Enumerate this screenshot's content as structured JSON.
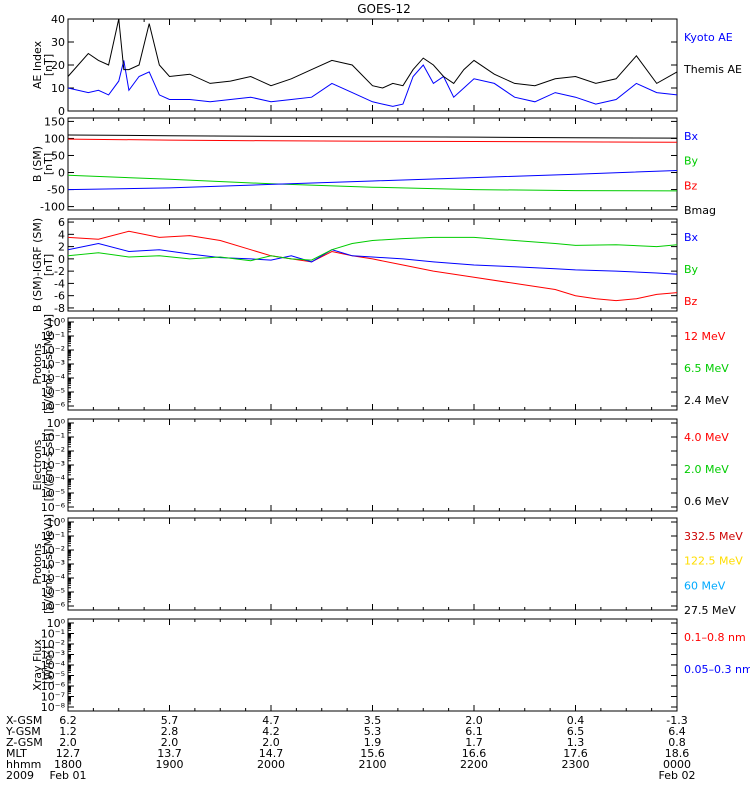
{
  "title": "GOES-12",
  "colors": {
    "black": "#000000",
    "blue": "#0000ff",
    "red": "#ff0000",
    "green": "#00cc00",
    "yellow": "#ffdd00",
    "cyan": "#00aaff"
  },
  "chart_data": [
    {
      "type": "line",
      "ylabel": [
        "AE Index",
        "[nT]"
      ],
      "ylim": [
        0,
        40
      ],
      "yticks": [
        "0",
        "10",
        "20",
        "30",
        "40"
      ],
      "legend": [
        {
          "label": "Kyoto AE",
          "color": "#0000ff"
        },
        {
          "label": "Themis AE",
          "color": "#000000"
        }
      ],
      "series": [
        {
          "name": "Kyoto AE",
          "color": "#0000ff",
          "x": [
            0,
            0.2,
            0.3,
            0.4,
            0.5,
            0.55,
            0.6,
            0.7,
            0.8,
            0.9,
            1.0,
            1.2,
            1.4,
            1.6,
            1.8,
            2.0,
            2.2,
            2.4,
            2.6,
            2.8,
            3.0,
            3.1,
            3.2,
            3.3,
            3.4,
            3.5,
            3.6,
            3.7,
            3.8,
            3.9,
            4.0,
            4.2,
            4.4,
            4.6,
            4.8,
            5.0,
            5.2,
            5.4,
            5.6,
            5.8,
            6.0
          ],
          "y": [
            10,
            8,
            9,
            7,
            13,
            22,
            9,
            15,
            17,
            7,
            5,
            5,
            4,
            5,
            6,
            4,
            5,
            6,
            12,
            8,
            4,
            3,
            2,
            3,
            15,
            20,
            12,
            15,
            6,
            10,
            14,
            12,
            6,
            4,
            8,
            6,
            3,
            5,
            12,
            8,
            7
          ]
        },
        {
          "name": "Themis AE",
          "color": "#000000",
          "x": [
            0,
            0.2,
            0.3,
            0.4,
            0.5,
            0.55,
            0.6,
            0.7,
            0.8,
            0.9,
            1.0,
            1.2,
            1.4,
            1.6,
            1.8,
            2.0,
            2.2,
            2.4,
            2.6,
            2.8,
            3.0,
            3.1,
            3.2,
            3.3,
            3.4,
            3.5,
            3.6,
            3.7,
            3.8,
            3.9,
            4.0,
            4.2,
            4.4,
            4.6,
            4.8,
            5.0,
            5.2,
            5.4,
            5.6,
            5.8,
            6.0
          ],
          "y": [
            15,
            25,
            22,
            20,
            40,
            18,
            18,
            20,
            38,
            20,
            15,
            16,
            12,
            13,
            15,
            11,
            14,
            18,
            22,
            20,
            11,
            10,
            12,
            11,
            18,
            23,
            20,
            15,
            12,
            18,
            22,
            16,
            12,
            11,
            14,
            15,
            12,
            14,
            24,
            12,
            17
          ]
        }
      ]
    },
    {
      "type": "line",
      "ylabel": [
        "B (SM)",
        "[nT]"
      ],
      "ylim": [
        -110,
        160
      ],
      "yticks": [
        "-100",
        "-50",
        "0",
        "50",
        "100",
        "150"
      ],
      "legend": [
        {
          "label": "Bx",
          "color": "#0000ff"
        },
        {
          "label": "By",
          "color": "#00cc00"
        },
        {
          "label": "Bz",
          "color": "#ff0000"
        },
        {
          "label": "Bmag",
          "color": "#000000"
        }
      ],
      "series": [
        {
          "name": "Bmag",
          "color": "#000000",
          "x": [
            0,
            1,
            2,
            3,
            4,
            5,
            6
          ],
          "y": [
            110,
            108,
            106,
            105,
            104,
            102,
            101
          ]
        },
        {
          "name": "Bz",
          "color": "#ff0000",
          "x": [
            0,
            1,
            2,
            3,
            4,
            5,
            6
          ],
          "y": [
            98,
            95,
            93,
            92,
            91,
            90,
            89
          ]
        },
        {
          "name": "By",
          "color": "#00cc00",
          "x": [
            0,
            1,
            2,
            3,
            4,
            5,
            6
          ],
          "y": [
            -8,
            -20,
            -33,
            -43,
            -50,
            -53,
            -54
          ]
        },
        {
          "name": "Bx",
          "color": "#0000ff",
          "x": [
            0,
            1,
            2,
            3,
            4,
            5,
            6
          ],
          "y": [
            -50,
            -45,
            -35,
            -25,
            -15,
            -5,
            6
          ]
        }
      ]
    },
    {
      "type": "line",
      "ylabel": [
        "B (SM)-IGRF (SM)",
        "[nT]"
      ],
      "ylim": [
        -8.5,
        6.5
      ],
      "yticks": [
        "-8",
        "-6",
        "-4",
        "-2",
        "0",
        "2",
        "4",
        "6"
      ],
      "legend": [
        {
          "label": "Bx",
          "color": "#0000ff"
        },
        {
          "label": "By",
          "color": "#00cc00"
        },
        {
          "label": "Bz",
          "color": "#ff0000"
        }
      ],
      "series": [
        {
          "name": "Bz",
          "color": "#ff0000",
          "x": [
            0,
            0.3,
            0.6,
            0.9,
            1.2,
            1.5,
            1.8,
            2.0,
            2.2,
            2.4,
            2.6,
            2.8,
            3.0,
            3.3,
            3.6,
            4.0,
            4.4,
            4.8,
            5.0,
            5.2,
            5.4,
            5.6,
            5.8,
            6.0
          ],
          "y": [
            3.5,
            3.2,
            4.5,
            3.5,
            3.8,
            3.0,
            1.5,
            0.5,
            0,
            -0.5,
            1.2,
            0.5,
            0,
            -1.0,
            -2.0,
            -3.0,
            -4.0,
            -5.0,
            -6.0,
            -6.5,
            -6.8,
            -6.5,
            -5.8,
            -5.5
          ]
        },
        {
          "name": "Bx",
          "color": "#0000ff",
          "x": [
            0,
            0.3,
            0.6,
            0.9,
            1.2,
            1.5,
            1.8,
            2.0,
            2.2,
            2.4,
            2.6,
            2.8,
            3.0,
            3.3,
            3.6,
            4.0,
            4.4,
            4.8,
            5.0,
            5.4,
            5.8,
            6.0
          ],
          "y": [
            1.5,
            2.5,
            1.2,
            1.5,
            0.8,
            0.2,
            0,
            -0.2,
            0.5,
            -0.5,
            1.5,
            0.5,
            0.3,
            0,
            -0.5,
            -1.0,
            -1.3,
            -1.6,
            -1.8,
            -2.0,
            -2.3,
            -2.5
          ]
        },
        {
          "name": "By",
          "color": "#00cc00",
          "x": [
            0,
            0.3,
            0.6,
            0.9,
            1.2,
            1.5,
            1.8,
            2.0,
            2.2,
            2.4,
            2.6,
            2.8,
            3.0,
            3.3,
            3.6,
            4.0,
            4.4,
            4.8,
            5.0,
            5.4,
            5.8,
            6.0
          ],
          "y": [
            0.5,
            1.0,
            0.3,
            0.5,
            0,
            0.3,
            -0.3,
            0.5,
            0,
            -0.2,
            1.5,
            2.5,
            3.0,
            3.3,
            3.5,
            3.5,
            3.0,
            2.5,
            2.2,
            2.3,
            2.0,
            2.3
          ]
        }
      ]
    },
    {
      "type": "line",
      "ylabel": [
        "Protons",
        "[p/(cm²-s-sr-MeV)]"
      ],
      "log": true,
      "yticks": [
        "10⁻⁶",
        "10⁻⁵",
        "10⁻⁴",
        "10⁻³",
        "10⁻²",
        "10⁻¹",
        "10⁰"
      ],
      "legend": [
        {
          "label": "12 MeV",
          "color": "#ff0000"
        },
        {
          "label": "6.5 MeV",
          "color": "#00cc00"
        },
        {
          "label": "2.4 MeV",
          "color": "#000000"
        }
      ],
      "series": []
    },
    {
      "type": "line",
      "ylabel": [
        "Electrons",
        "[e/(cm²-s-sr)]"
      ],
      "log": true,
      "yticks": [
        "10⁻⁶",
        "10⁻⁵",
        "10⁻⁴",
        "10⁻³",
        "10⁻²",
        "10⁻¹",
        "10⁰"
      ],
      "legend": [
        {
          "label": "4.0 MeV",
          "color": "#ff0000"
        },
        {
          "label": "2.0 MeV",
          "color": "#00cc00"
        },
        {
          "label": "0.6 MeV",
          "color": "#000000"
        }
      ],
      "series": []
    },
    {
      "type": "line",
      "ylabel": [
        "Protons",
        "[p/(cm²-s-sr-MeV)]"
      ],
      "log": true,
      "yticks": [
        "10⁻⁶",
        "10⁻⁵",
        "10⁻⁴",
        "10⁻³",
        "10⁻²",
        "10⁻¹",
        "10⁰"
      ],
      "legend": [
        {
          "label": "332.5 MeV",
          "color": "#cc0000"
        },
        {
          "label": "122.5 MeV",
          "color": "#ffdd00"
        },
        {
          "label": "60 MeV",
          "color": "#00aaff"
        },
        {
          "label": "27.5 MeV",
          "color": "#000000"
        }
      ],
      "series": []
    },
    {
      "type": "line",
      "ylabel": [
        "Xray  Flux",
        "[W/m²]"
      ],
      "log": true,
      "yticks": [
        "10⁻⁸",
        "10⁻⁷",
        "10⁻⁶",
        "10⁻⁵",
        "10⁻⁴",
        "10⁻³",
        "10⁻²",
        "10⁻¹",
        "10⁰"
      ],
      "legend": [
        {
          "label": "0.1–0.8 nm",
          "color": "#ff0000"
        },
        {
          "label": "0.05–0.3 nm",
          "color": "#0000ff"
        }
      ],
      "series": []
    }
  ],
  "orbit_table": {
    "labels": [
      "X-GSM",
      "Y-GSM",
      "Z-GSM",
      "MLT",
      "hhmm",
      "2009"
    ],
    "columns": [
      [
        "6.2",
        "1.2",
        "2.0",
        "12.7",
        "1800",
        "Feb 01"
      ],
      [
        "5.7",
        "2.8",
        "2.0",
        "13.7",
        "1900",
        ""
      ],
      [
        "4.7",
        "4.2",
        "2.0",
        "14.7",
        "2000",
        ""
      ],
      [
        "3.5",
        "5.3",
        "1.9",
        "15.6",
        "2100",
        ""
      ],
      [
        "2.0",
        "6.1",
        "1.7",
        "16.6",
        "2200",
        ""
      ],
      [
        "0.4",
        "6.5",
        "1.3",
        "17.6",
        "2300",
        ""
      ],
      [
        "-1.3",
        "6.4",
        "0.8",
        "18.6",
        "0000",
        "Feb 02"
      ]
    ]
  }
}
